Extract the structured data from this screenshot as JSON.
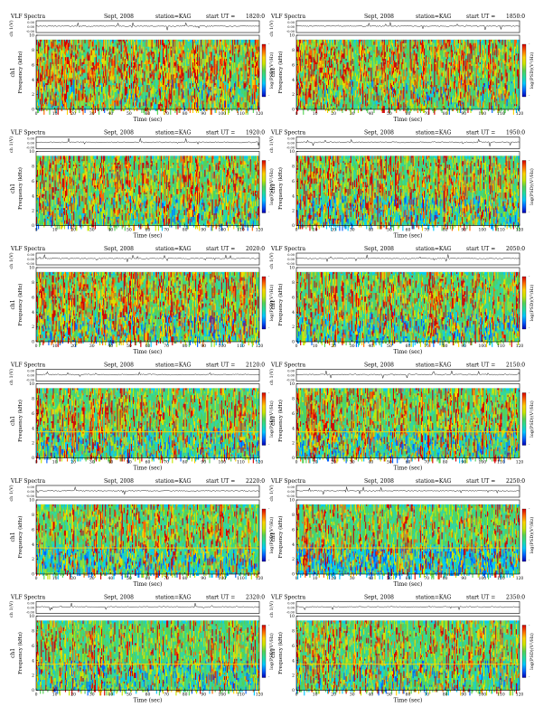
{
  "chart_data": {
    "type": "heatmap",
    "common": {
      "title_left": "VLF Spectra",
      "date": "Sept, 2008",
      "station": "station=KAG",
      "start_prefix": "start  UT =",
      "wave_ylabel": "ch 1(V)",
      "wave_yticks": [
        "0.00",
        "0.00",
        "-0.00"
      ],
      "spec_ylabel": "Frequency  (kHz)",
      "channel_label": "ch1",
      "xlabel": "Time  (sec)",
      "xlim": [
        0,
        120
      ],
      "xticks": [
        0,
        10,
        20,
        30,
        40,
        50,
        60,
        70,
        80,
        90,
        100,
        110,
        120
      ],
      "ylim": [
        0,
        10
      ],
      "yticks": [
        0,
        2,
        4,
        6,
        8,
        10
      ],
      "colorbar_label": "log(PSD)(V²/Hz)",
      "colorbar_ticks": [
        "-",
        "-"
      ],
      "colors": [
        "#0000b4",
        "#0060ff",
        "#00c8ff",
        "#22dca0",
        "#55d255",
        "#c8e600",
        "#ffd200",
        "#ff6600",
        "#d40000"
      ]
    },
    "panels": [
      {
        "start_ut": "1820:0",
        "seed": 3,
        "density": 0.6,
        "bg_blue": 0.15
      },
      {
        "start_ut": "1850:0",
        "seed": 7,
        "density": 0.62,
        "bg_blue": 0.12
      },
      {
        "start_ut": "1920:0",
        "seed": 11,
        "density": 0.55,
        "bg_blue": 0.22
      },
      {
        "start_ut": "1950:0",
        "seed": 17,
        "density": 0.5,
        "bg_blue": 0.35
      },
      {
        "start_ut": "2020:0",
        "seed": 23,
        "density": 0.5,
        "bg_blue": 0.3
      },
      {
        "start_ut": "2050:0",
        "seed": 29,
        "density": 0.4,
        "bg_blue": 0.3
      },
      {
        "start_ut": "2120:0",
        "seed": 31,
        "density": 0.38,
        "bg_blue": 0.3
      },
      {
        "start_ut": "2150:0",
        "seed": 37,
        "density": 0.35,
        "bg_blue": 0.35
      },
      {
        "start_ut": "2220:0",
        "seed": 41,
        "density": 0.3,
        "bg_blue": 0.35
      },
      {
        "start_ut": "2250:0",
        "seed": 43,
        "density": 0.3,
        "bg_blue": 0.55
      },
      {
        "start_ut": "2320:0",
        "seed": 47,
        "density": 0.28,
        "bg_blue": 0.3
      },
      {
        "start_ut": "2350:0",
        "seed": 53,
        "density": 0.3,
        "bg_blue": 0.2
      }
    ]
  }
}
